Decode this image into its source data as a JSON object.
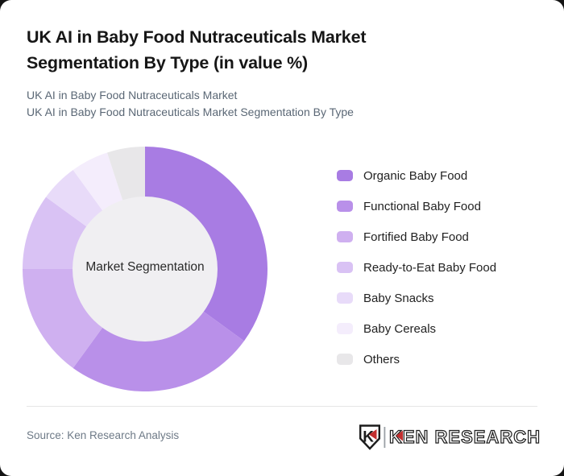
{
  "window": {
    "background_color": "#141414",
    "card_color": "#ffffff"
  },
  "header": {
    "title": "UK AI in Baby Food Nutraceuticals Market Segmentation By Type (in value %)",
    "subtitle_line1": "UK AI in Baby Food Nutraceuticals Market",
    "subtitle_line2": "UK AI in Baby Food Nutraceuticals Market Segmentation By Type"
  },
  "chart_data": {
    "type": "pie",
    "subtype": "donut",
    "title": "UK AI in Baby Food Nutraceuticals Market Segmentation By Type (in value %)",
    "unit": "%",
    "center_label": "Market Segmentation",
    "hole_color": "#f0eff2",
    "start_angle_deg": 0,
    "direction": "clockwise",
    "inner_radius_ratio": 0.592,
    "legend_position": "right",
    "series": [
      {
        "label": "Organic Baby Food",
        "value": 35,
        "color": "#a87ce3"
      },
      {
        "label": "Functional Baby Food",
        "value": 25,
        "color": "#b990e9"
      },
      {
        "label": "Fortified Baby Food",
        "value": 15,
        "color": "#cfb0f0"
      },
      {
        "label": "Ready-to-Eat Baby Food",
        "value": 10,
        "color": "#d9c2f4"
      },
      {
        "label": "Baby Snacks",
        "value": 5,
        "color": "#e8dbf9"
      },
      {
        "label": "Baby Cereals",
        "value": 5,
        "color": "#f4edfc"
      },
      {
        "label": "Others",
        "value": 5,
        "color": "#e8e7e9"
      }
    ]
  },
  "footer": {
    "source": "Source: Ken Research Analysis",
    "logo": {
      "brand": "KEN RESEARCH",
      "monogram": "K",
      "accent_color": "#c22e2e",
      "ink_color": "#1f1f1f"
    }
  }
}
